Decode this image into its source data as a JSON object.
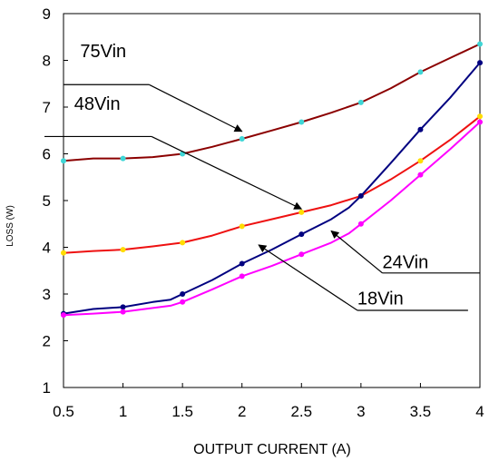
{
  "chart_data": {
    "type": "line",
    "title": "",
    "xlabel": "OUTPUT CURRENT (A)",
    "ylabel": "LOSS (W)",
    "xlim": [
      0.5,
      4
    ],
    "ylim": [
      1,
      9
    ],
    "xticks": [
      "0.5",
      "1",
      "1.5",
      "2",
      "2.5",
      "3",
      "3.5",
      "4"
    ],
    "yticks": [
      "1",
      "2",
      "3",
      "4",
      "5",
      "6",
      "7",
      "8",
      "9"
    ],
    "grid": false,
    "legend": "none",
    "series": [
      {
        "key": "75vin",
        "color": "#8b0000",
        "marker_color": "#3fd6d6",
        "x": [
          0.5,
          0.75,
          1,
          1.25,
          1.5,
          1.75,
          2,
          2.25,
          2.5,
          2.75,
          3,
          3.25,
          3.5,
          3.75,
          4
        ],
        "y": [
          5.85,
          5.9,
          5.9,
          5.93,
          6.0,
          6.15,
          6.32,
          6.5,
          6.68,
          6.88,
          7.1,
          7.4,
          7.75,
          8.05,
          8.35
        ],
        "marker_x": [
          0.5,
          1,
          1.5,
          2,
          2.5,
          3,
          3.5,
          4
        ],
        "marker_y": [
          5.85,
          5.9,
          6.0,
          6.32,
          6.68,
          7.1,
          7.75,
          8.35
        ]
      },
      {
        "key": "48vin",
        "color": "#ee1111",
        "marker_color": "#ffdd00",
        "x": [
          0.5,
          0.75,
          1,
          1.25,
          1.5,
          1.75,
          2,
          2.25,
          2.5,
          2.75,
          3,
          3.25,
          3.5,
          3.75,
          4
        ],
        "y": [
          3.88,
          3.92,
          3.95,
          4.02,
          4.1,
          4.25,
          4.45,
          4.6,
          4.75,
          4.9,
          5.1,
          5.45,
          5.85,
          6.3,
          6.8
        ],
        "marker_x": [
          0.5,
          1,
          1.5,
          2,
          2.5,
          3,
          3.5,
          4
        ],
        "marker_y": [
          3.88,
          3.95,
          4.1,
          4.45,
          4.75,
          5.1,
          5.85,
          6.8
        ]
      },
      {
        "key": "24vin",
        "color": "#000080",
        "marker_color": "#000080",
        "x": [
          0.5,
          0.75,
          1,
          1.25,
          1.4,
          1.5,
          1.75,
          2,
          2.25,
          2.5,
          2.75,
          2.9,
          3,
          3.25,
          3.5,
          3.75,
          4
        ],
        "y": [
          2.58,
          2.68,
          2.72,
          2.83,
          2.88,
          3.0,
          3.3,
          3.65,
          3.95,
          4.28,
          4.6,
          4.85,
          5.1,
          5.8,
          6.52,
          7.2,
          7.95
        ],
        "marker_x": [
          0.5,
          1,
          1.5,
          2,
          2.5,
          3,
          3.5,
          4
        ],
        "marker_y": [
          2.58,
          2.72,
          3.0,
          3.65,
          4.28,
          5.1,
          6.52,
          7.95
        ]
      },
      {
        "key": "18vin",
        "color": "#ff00ff",
        "marker_color": "#ff00ff",
        "x": [
          0.5,
          0.75,
          1,
          1.25,
          1.4,
          1.5,
          1.75,
          2,
          2.25,
          2.5,
          2.75,
          2.9,
          3,
          3.25,
          3.5,
          3.75,
          4
        ],
        "y": [
          2.55,
          2.58,
          2.62,
          2.7,
          2.75,
          2.83,
          3.1,
          3.38,
          3.6,
          3.85,
          4.1,
          4.3,
          4.5,
          5.0,
          5.55,
          6.1,
          6.68
        ],
        "marker_x": [
          0.5,
          1,
          1.5,
          2,
          2.5,
          3,
          3.5,
          4
        ],
        "marker_y": [
          2.55,
          2.62,
          2.83,
          3.38,
          3.85,
          4.5,
          5.55,
          6.68
        ]
      }
    ],
    "annotations": [
      {
        "key": "75vin",
        "text": "75Vin",
        "label_x": 0.64,
        "label_y": 8.07,
        "underline": [
          0.5,
          1.22,
          7.48
        ],
        "arrow_from": [
          1.22,
          7.48
        ],
        "arrow_to": [
          2.0,
          6.48
        ]
      },
      {
        "key": "48vin",
        "text": "48Vin",
        "label_x": 0.59,
        "label_y": 6.94,
        "underline": [
          0.34,
          1.24,
          6.37
        ],
        "arrow_from": [
          1.24,
          6.37
        ],
        "arrow_to": [
          2.5,
          4.82
        ]
      },
      {
        "key": "24vin",
        "text": "24Vin",
        "label_x": 3.18,
        "label_y": 3.55,
        "underline": [
          3.18,
          4.0,
          3.45
        ],
        "arrow_from": [
          3.18,
          3.45
        ],
        "arrow_to": [
          2.75,
          4.35
        ]
      },
      {
        "key": "18vin",
        "text": "18Vin",
        "label_x": 2.97,
        "label_y": 2.78,
        "underline": [
          2.97,
          3.9,
          2.65
        ],
        "arrow_from": [
          2.97,
          2.65
        ],
        "arrow_to": [
          2.14,
          4.05
        ]
      }
    ]
  }
}
